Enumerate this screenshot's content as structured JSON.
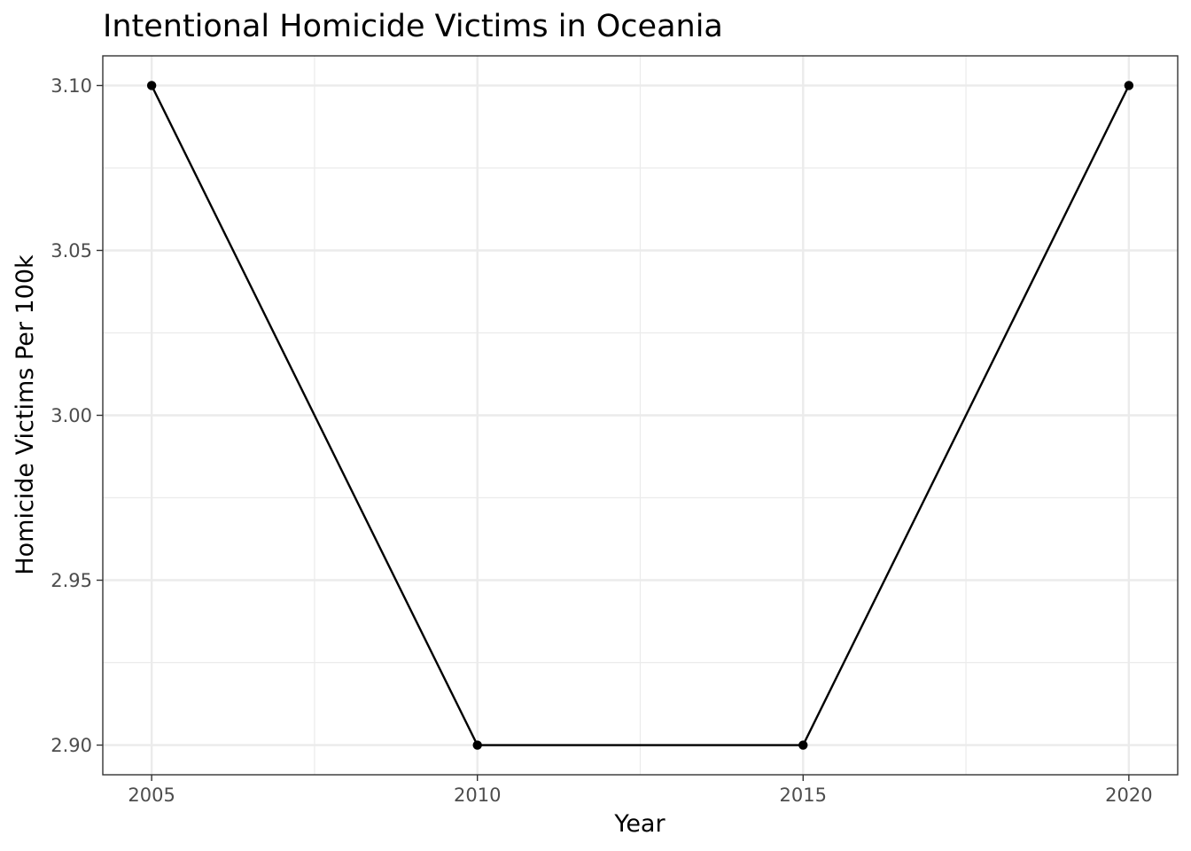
{
  "chart_data": {
    "type": "line",
    "title": "Intentional Homicide Victims in Oceania",
    "xlabel": "Year",
    "ylabel": "Homicide Victims Per 100k",
    "x": [
      2005,
      2010,
      2015,
      2020
    ],
    "series": [
      {
        "values": [
          3.1,
          2.9,
          2.9,
          3.1
        ]
      }
    ],
    "xlim": [
      2004.25,
      2020.75
    ],
    "ylim": [
      2.891,
      3.109
    ],
    "x_ticks": [
      2005,
      2010,
      2015,
      2020
    ],
    "x_tick_labels": [
      "2005",
      "2010",
      "2015",
      "2020"
    ],
    "x_minor_ticks": [
      2007.5,
      2012.5,
      2017.5
    ],
    "y_ticks": [
      2.9,
      2.95,
      3.0,
      3.05,
      3.1
    ],
    "y_tick_labels": [
      "2.90",
      "2.95",
      "3.00",
      "3.05",
      "3.10"
    ],
    "y_minor_ticks": [
      2.925,
      2.975,
      3.025,
      3.075
    ],
    "grid": true,
    "legend": "none",
    "line_color": "#000000",
    "grid_color": "#ebebeb",
    "border_color": "#333333",
    "tick_label_color": "#4d4d4d"
  }
}
